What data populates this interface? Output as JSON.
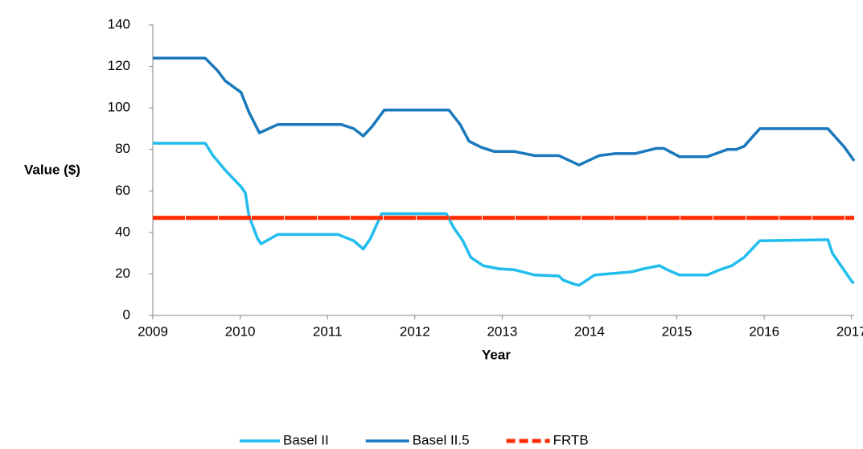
{
  "chart_data": {
    "type": "line",
    "xlabel": "Year",
    "ylabel": "Value ($)",
    "xlim": [
      2009,
      2017.03
    ],
    "ylim": [
      0,
      140
    ],
    "xticks": [
      2009,
      2010,
      2011,
      2012,
      2013,
      2014,
      2015,
      2016,
      2017
    ],
    "yticks": [
      0,
      20,
      40,
      60,
      80,
      100,
      120,
      140
    ],
    "grid": false,
    "legend": "bottom",
    "series": [
      {
        "name": "Basel II",
        "color": "#21bdee",
        "dash": false,
        "x": [
          2009,
          2009.6,
          2009.69,
          2009.83,
          2010.01,
          2010.06,
          2010.1,
          2010.2,
          2010.24,
          2010.43,
          2011.12,
          2011.3,
          2011.41,
          2011.49,
          2011.62,
          2012.36,
          2012.45,
          2012.55,
          2012.64,
          2012.78,
          2012.96,
          2013.14,
          2013.37,
          2013.65,
          2013.7,
          2013.83,
          2013.88,
          2014.06,
          2014.48,
          2014.62,
          2014.8,
          2014.89,
          2015.03,
          2015.35,
          2015.49,
          2015.63,
          2015.77,
          2015.95,
          2016.73,
          2016.78,
          2017.01,
          2017.03
        ],
        "values": [
          83,
          83,
          77,
          70,
          62,
          59,
          48,
          37,
          34.5,
          39,
          39,
          36,
          32,
          37,
          49,
          49,
          42,
          36,
          28,
          24,
          22.5,
          22,
          19.5,
          19,
          17,
          15,
          14.5,
          19.5,
          21,
          22.5,
          24,
          22,
          19.5,
          19.5,
          22,
          24,
          28,
          36,
          36.5,
          30,
          16,
          16
        ]
      },
      {
        "name": "Basel II.5",
        "color": "#1a78bd",
        "dash": false,
        "x": [
          2009,
          2009.6,
          2009.74,
          2009.83,
          2010.01,
          2010.1,
          2010.22,
          2010.43,
          2011.16,
          2011.3,
          2011.41,
          2011.51,
          2011.65,
          2012.39,
          2012.52,
          2012.62,
          2012.76,
          2012.91,
          2013.14,
          2013.37,
          2013.65,
          2013.88,
          2014.11,
          2014.29,
          2014.52,
          2014.76,
          2014.85,
          2015.03,
          2015.35,
          2015.58,
          2015.68,
          2015.77,
          2015.95,
          2016.73,
          2016.92,
          2017.03
        ],
        "values": [
          124,
          124,
          118,
          113,
          107.5,
          98,
          88,
          92,
          92,
          90,
          86.5,
          91,
          99,
          99,
          92,
          84,
          81,
          79,
          79,
          77,
          77,
          72.5,
          77,
          78,
          78,
          80.5,
          80.5,
          76.5,
          76.5,
          80,
          80,
          81.5,
          90,
          90,
          81,
          74.5
        ]
      },
      {
        "name": "FRTB",
        "color": "#ff2a00",
        "dash": true,
        "x": [
          2009,
          2017.03
        ],
        "values": [
          47,
          47
        ]
      }
    ]
  }
}
